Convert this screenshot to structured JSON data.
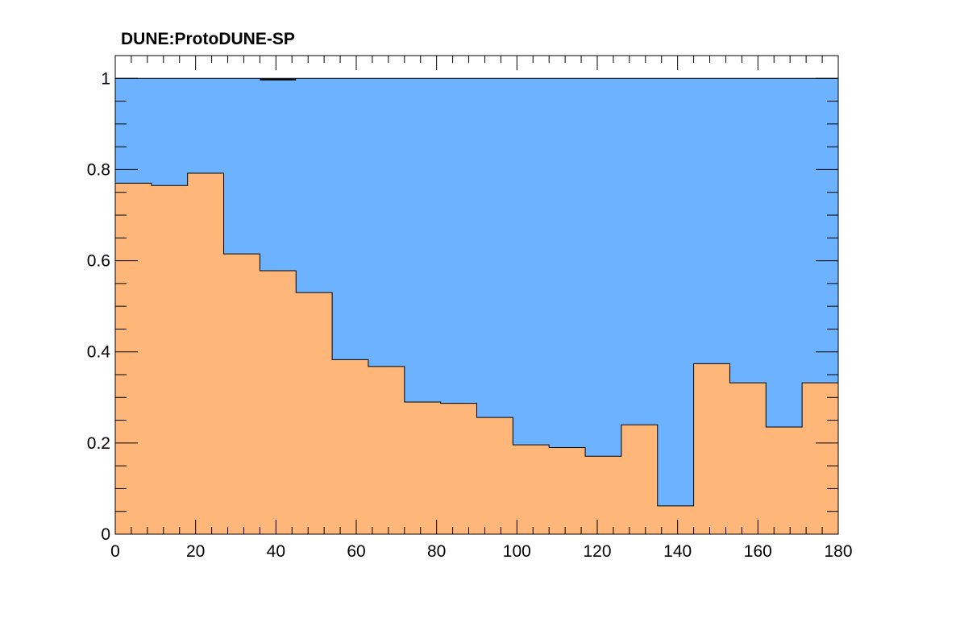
{
  "chart_data": {
    "type": "area",
    "title": "DUNE:ProtoDUNE-SP",
    "xlabel": "",
    "ylabel": "",
    "xlim": [
      0,
      180
    ],
    "ylim": [
      0,
      1.05
    ],
    "x_ticks": [
      0,
      20,
      40,
      60,
      80,
      100,
      120,
      140,
      160,
      180
    ],
    "x_tick_labels": [
      "0",
      "20",
      "40",
      "60",
      "80",
      "100",
      "120",
      "140",
      "160",
      "180"
    ],
    "y_ticks": [
      0,
      0.2,
      0.4,
      0.6,
      0.8,
      1
    ],
    "y_tick_labels": [
      "0",
      "0.2",
      "0.4",
      "0.6",
      "0.8",
      "1"
    ],
    "bin_edges": [
      0,
      9,
      18,
      27,
      36,
      45,
      54,
      63,
      72,
      81,
      90,
      99,
      108,
      117,
      126,
      135,
      144,
      153,
      162,
      171,
      180
    ],
    "series": [
      {
        "color": "#ffb679",
        "values": [
          0.77,
          0.765,
          0.792,
          0.615,
          0.578,
          0.53,
          0.383,
          0.368,
          0.29,
          0.287,
          0.256,
          0.196,
          0.19,
          0.171,
          0.24,
          0.062,
          0.374,
          0.332,
          0.235,
          0.332
        ]
      },
      {
        "color": "#6db2fe",
        "values": [
          1,
          1,
          1,
          1,
          1,
          1,
          1,
          1,
          1,
          1,
          1,
          1,
          1,
          1,
          1,
          1,
          1,
          1,
          1,
          1
        ]
      }
    ],
    "grid": false,
    "legend": "none"
  }
}
